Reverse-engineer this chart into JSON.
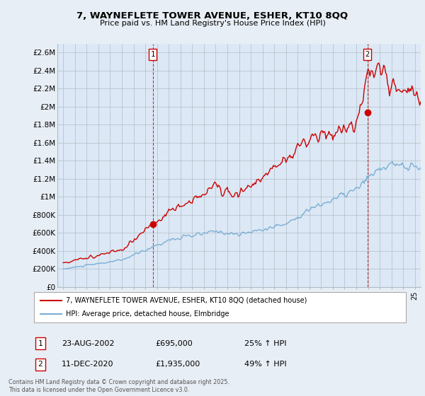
{
  "title1": "7, WAYNEFLETE TOWER AVENUE, ESHER, KT10 8QQ",
  "title2": "Price paid vs. HM Land Registry's House Price Index (HPI)",
  "legend_label1": "7, WAYNEFLETE TOWER AVENUE, ESHER, KT10 8QQ (detached house)",
  "legend_label2": "HPI: Average price, detached house, Elmbridge",
  "annotation1": {
    "num": "1",
    "date": "23-AUG-2002",
    "price": "£695,000",
    "pct": "25% ↑ HPI",
    "x_year": 2002.64
  },
  "annotation2": {
    "num": "2",
    "date": "11-DEC-2020",
    "price": "£1,935,000",
    "pct": "49% ↑ HPI",
    "x_year": 2020.95
  },
  "sale1_x": 2002.64,
  "sale1_y": 695000,
  "sale2_x": 2020.95,
  "sale2_y": 1935000,
  "line1_color": "#cc0000",
  "line2_color": "#7bafd4",
  "dot_color": "#cc0000",
  "vline_color": "#cc0000",
  "footer": "Contains HM Land Registry data © Crown copyright and database right 2025.\nThis data is licensed under the Open Government Licence v3.0.",
  "ylim": [
    0,
    2700000
  ],
  "yticks": [
    0,
    200000,
    400000,
    600000,
    800000,
    1000000,
    1200000,
    1400000,
    1600000,
    1800000,
    2000000,
    2200000,
    2400000,
    2600000
  ],
  "ytick_labels": [
    "£0",
    "£200K",
    "£400K",
    "£600K",
    "£800K",
    "£1M",
    "£1.2M",
    "£1.4M",
    "£1.6M",
    "£1.8M",
    "£2M",
    "£2.2M",
    "£2.4M",
    "£2.6M"
  ],
  "xmin": 1994.5,
  "xmax": 2025.5,
  "background_color": "#e8eef5",
  "plot_bg_color": "#dce8f5",
  "grid_color": "#b0bec5"
}
